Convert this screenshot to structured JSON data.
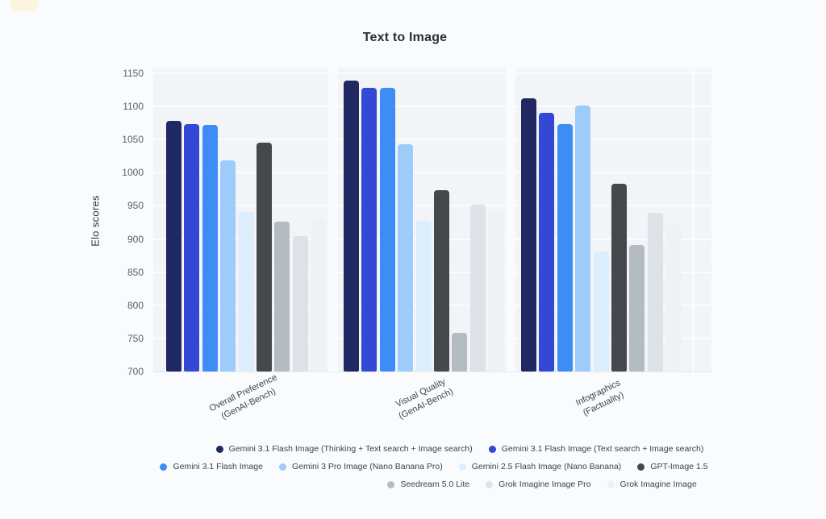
{
  "chart_data": {
    "type": "bar",
    "title": "Text to Image",
    "xlabel": "",
    "ylabel": "Elo scores",
    "ylim": [
      700,
      1150
    ],
    "ytick_step": 50,
    "grid": true,
    "legend_position": "bottom",
    "categories": [
      [
        "Overall Preference",
        "(GenAI-Bench)"
      ],
      [
        "Visual Quality",
        "(GenAI-Bench)"
      ],
      [
        "Infographics",
        "(Factuality)"
      ]
    ],
    "series": [
      {
        "name": "Gemini 3.1 Flash Image (Thinking + Text search + Image search)",
        "color": "#1f2862",
        "values": [
          1078,
          1139,
          1112
        ]
      },
      {
        "name": "Gemini 3.1 Flash Image (Text search + Image search)",
        "color": "#3348d4",
        "values": [
          1073,
          1128,
          1090
        ]
      },
      {
        "name": "Gemini 3.1 Flash Image",
        "color": "#3e8df7",
        "values": [
          1072,
          1128,
          1073
        ]
      },
      {
        "name": "Gemini 3 Pro Image (Nano Banana Pro)",
        "color": "#9dcbfa",
        "values": [
          1019,
          1043,
          1101
        ]
      },
      {
        "name": "Gemini 2.5 Flash Image (Nano Banana)",
        "color": "#dceefb",
        "values": [
          941,
          928,
          881
        ]
      },
      {
        "name": "GPT-Image 1.5",
        "color": "#45474c",
        "values": [
          1046,
          974,
          984
        ]
      },
      {
        "name": "Seedream 5.0 Lite",
        "color": "#b4bcc3",
        "values": [
          926,
          758,
          891
        ]
      },
      {
        "name": "Grok Imagine Image Pro",
        "color": "#dde1e8",
        "values": [
          904,
          952,
          940
        ]
      },
      {
        "name": "Grok Imagine Image",
        "color": "#eff1f5",
        "values": [
          930,
          940,
          921
        ]
      }
    ],
    "legend_rows": [
      [
        0,
        1
      ],
      [
        2,
        3,
        4,
        5
      ],
      [
        6,
        7,
        8
      ]
    ]
  }
}
